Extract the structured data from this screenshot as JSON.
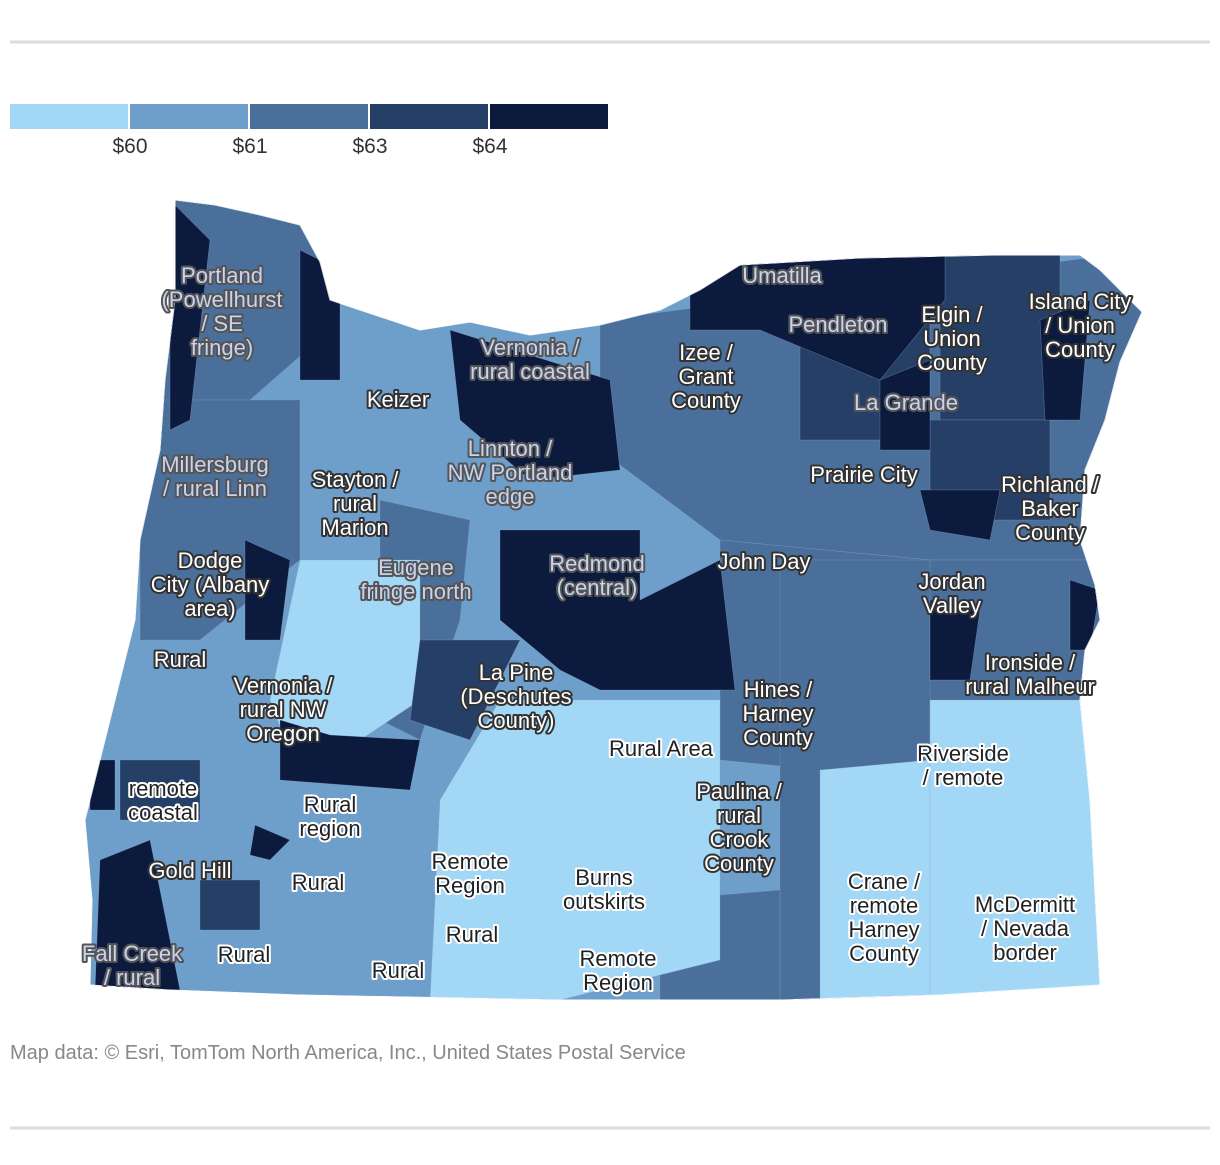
{
  "legend": {
    "colors": [
      "#a3d7f6",
      "#6e9fcb",
      "#4a6f9a",
      "#263f66",
      "#0c1a3d"
    ],
    "labels": [
      "$60",
      "$61",
      "$63",
      "$64"
    ]
  },
  "labels": [
    [
      "Portland",
      "(Powellhurst",
      "/ SE",
      "fringe)"
    ],
    [
      "Umatilla"
    ],
    [
      "Pendleton"
    ],
    [
      "Elgin /",
      "Union",
      "County"
    ],
    [
      "Island City",
      "/ Union",
      "County"
    ],
    [
      "Vernonia /",
      "rural coastal"
    ],
    [
      "Izee /",
      "Grant",
      "County"
    ],
    [
      "Keizer"
    ],
    [
      "La Grande"
    ],
    [
      "Linnton /",
      "NW Portland",
      "edge"
    ],
    [
      "Millersburg",
      "/ rural Linn"
    ],
    [
      "Stayton /",
      "rural",
      "Marion"
    ],
    [
      "Prairie City"
    ],
    [
      "Richland /",
      "Baker",
      "County"
    ],
    [
      "Dodge",
      "City (Albany",
      "area)"
    ],
    [
      "Eugene",
      "fringe north"
    ],
    [
      "Redmond",
      "(central)"
    ],
    [
      "John Day"
    ],
    [
      "Jordan",
      "Valley"
    ],
    [
      "Rural"
    ],
    [
      "Ironside /",
      "rural Malheur"
    ],
    [
      "La Pine",
      "(Deschutes",
      "County)"
    ],
    [
      "Vernonia /",
      "rural NW",
      "Oregon"
    ],
    [
      "Hines /",
      "Harney",
      "County"
    ],
    [
      "Rural Area"
    ],
    [
      "Riverside",
      "/ remote"
    ],
    [
      "remote",
      "coastal"
    ],
    [
      "Rural",
      "region"
    ],
    [
      "Paulina /",
      "rural",
      "Crook",
      "County"
    ],
    [
      "Remote",
      "Region"
    ],
    [
      "Gold Hill"
    ],
    [
      "Burns",
      "outskirts"
    ],
    [
      "Rural"
    ],
    [
      "Crane /",
      "remote",
      "Harney",
      "County"
    ],
    [
      "McDermitt",
      "/ Nevada",
      "border"
    ],
    [
      "Rural"
    ],
    [
      "Fall Creek",
      "/ rural"
    ],
    [
      "Rural"
    ],
    [
      "Rural"
    ],
    [
      "Remote",
      "Region"
    ]
  ],
  "source": "Map data: © Esri, TomTom North America, Inc., United States Postal Service"
}
